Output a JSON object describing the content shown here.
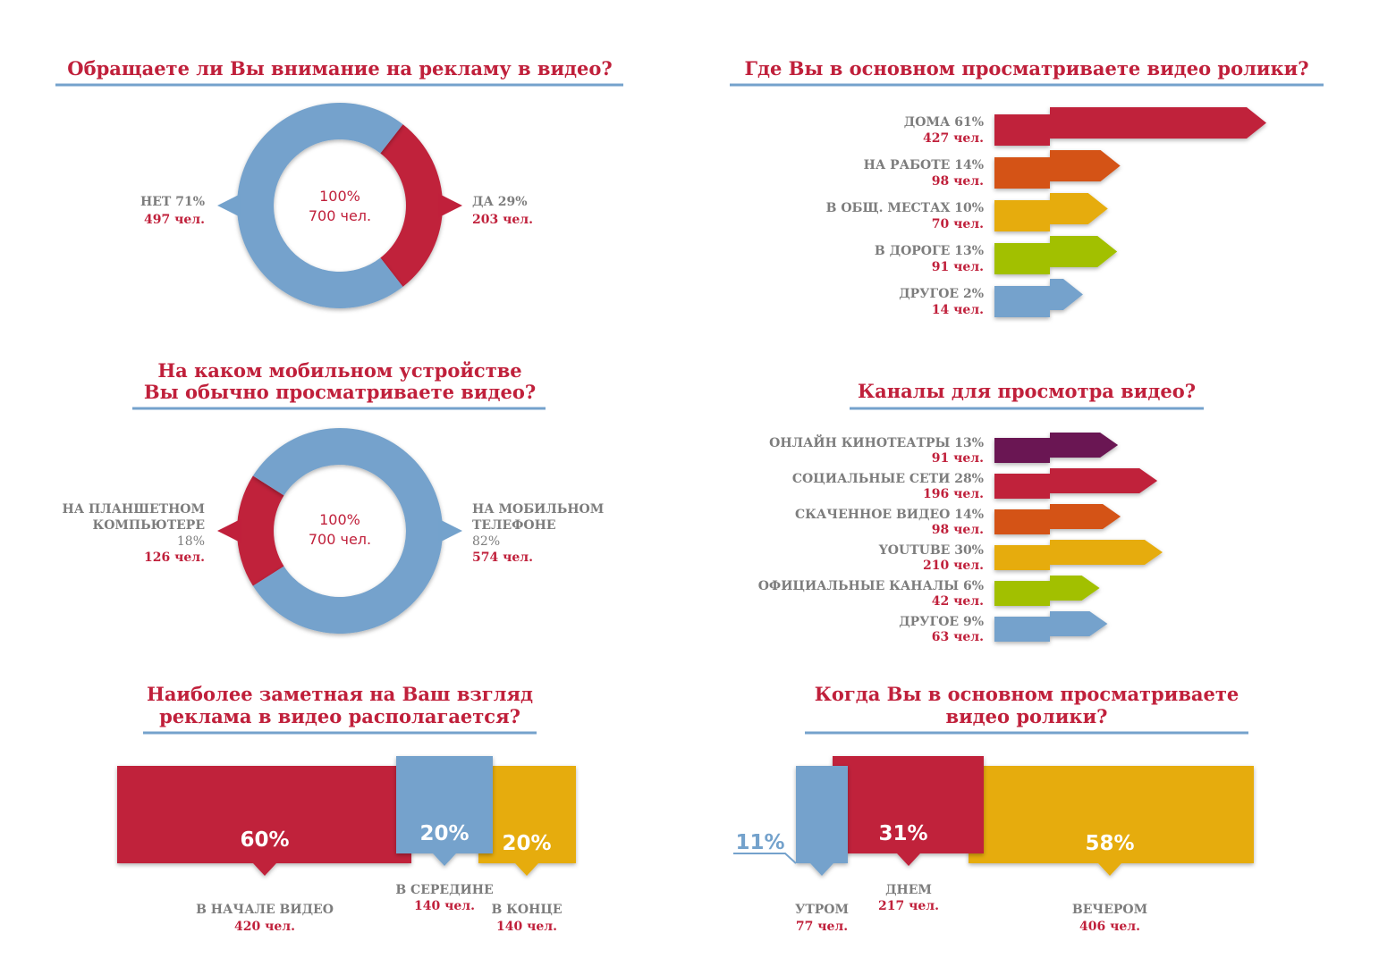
{
  "colors": {
    "red": "#c0203b",
    "blue": "#74a2cc",
    "orange": "#d45215",
    "yellow": "#e6ac08",
    "green": "#a2c000",
    "purple": "#6a1552",
    "gray": "#7d7d7d"
  },
  "chart_data": [
    {
      "id": "ad-attention",
      "type": "pie",
      "title": "Обращаете ли Вы внимание на рекламу в видео?",
      "center": {
        "line1": "100%",
        "line2": "700 чел."
      },
      "slices": [
        {
          "label": "ДА 29%",
          "count": "203 чел.",
          "value": 29,
          "color": "#c0203b"
        },
        {
          "label": "НЕТ 71%",
          "count": "497 чел.",
          "value": 71,
          "color": "#74a2cc"
        }
      ]
    },
    {
      "id": "watch-place",
      "type": "bar",
      "title": "Где Вы в основном просматриваете видео ролики?",
      "categories": [
        "ДОМА 61%",
        "НА РАБОТЕ 14%",
        "В ОБЩ. МЕСТАХ 10%",
        "В ДОРОГЕ 13%",
        "ДРУГОЕ 2%"
      ],
      "counts": [
        "427 чел.",
        "98 чел.",
        "70 чел.",
        "91 чел.",
        "14 чел."
      ],
      "values": [
        61,
        14,
        10,
        13,
        2
      ],
      "colors": [
        "#c0203b",
        "#d45215",
        "#e6ac08",
        "#a2c000",
        "#74a2cc"
      ]
    },
    {
      "id": "mobile-device",
      "type": "pie",
      "title_lines": [
        "На каком мобильном устройстве",
        "Вы обычно просматриваете видео?"
      ],
      "center": {
        "line1": "100%",
        "line2": "700 чел."
      },
      "slices": [
        {
          "label_lines": [
            "НА ПЛАНШЕТНОМ",
            "КОМПЬЮТЕРЕ",
            "18%"
          ],
          "count": "126 чел.",
          "value": 18,
          "color": "#c0203b"
        },
        {
          "label_lines": [
            "НА МОБИЛЬНОМ",
            "ТЕЛЕФОНЕ",
            "82%"
          ],
          "count": "574 чел.",
          "value": 82,
          "color": "#74a2cc"
        }
      ]
    },
    {
      "id": "channels",
      "type": "bar",
      "title": "Каналы для просмотра видео?",
      "categories": [
        "ОНЛАЙН КИНОТЕАТРЫ 13%",
        "СОЦИАЛЬНЫЕ СЕТИ 28%",
        "СКАЧЕННОЕ ВИДЕО 14%",
        "YOUTUBE 30%",
        "ОФИЦИАЛЬНЫЕ КАНАЛЫ 6%",
        "ДРУГОЕ 9%"
      ],
      "counts": [
        "91 чел.",
        "196 чел.",
        "98 чел.",
        "210 чел.",
        "42 чел.",
        "63 чел."
      ],
      "values": [
        13,
        28,
        14,
        30,
        6,
        9
      ],
      "colors": [
        "#6a1552",
        "#c0203b",
        "#d45215",
        "#e6ac08",
        "#a2c000",
        "#74a2cc"
      ]
    },
    {
      "id": "ad-position",
      "type": "bar",
      "title_lines": [
        "Наиболее заметная на Ваш взгляд",
        "реклама в видео располагается?"
      ],
      "items": [
        {
          "pct": "60%",
          "label": "В НАЧАЛЕ ВИДЕО",
          "count": "420 чел.",
          "value": 60,
          "color": "#c0203b"
        },
        {
          "pct": "20%",
          "label": "В СЕРЕДИНЕ",
          "count": "140 чел.",
          "value": 20,
          "color": "#74a2cc"
        },
        {
          "pct": "20%",
          "label": "В КОНЦЕ",
          "count": "140 чел.",
          "value": 20,
          "color": "#e6ac08"
        }
      ]
    },
    {
      "id": "watch-time",
      "type": "bar",
      "title_lines": [
        "Когда Вы в основном просматриваете",
        "видео ролики?"
      ],
      "items": [
        {
          "pct": "11%",
          "label": "УТРОМ",
          "count": "77 чел.",
          "value": 11,
          "color": "#74a2cc"
        },
        {
          "pct": "31%",
          "label": "ДНЕМ",
          "count": "217 чел.",
          "value": 31,
          "color": "#c0203b"
        },
        {
          "pct": "58%",
          "label": "ВЕЧЕРОМ",
          "count": "406 чел.",
          "value": 58,
          "color": "#e6ac08"
        }
      ]
    }
  ]
}
